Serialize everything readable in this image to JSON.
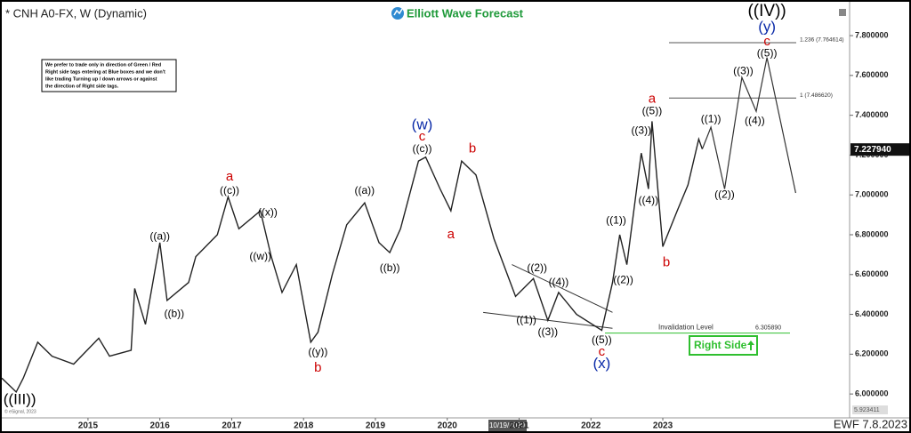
{
  "chart_data": {
    "type": "line",
    "title": "* CNH A0-FX, W (Dynamic)",
    "logo": "Elliott Wave Forecast",
    "note": [
      "We prefer to trade only in direction of Green / Red",
      "Right side tags entering at Blue boxes and we don't",
      "like trading Turning up / down arrows or against",
      "the direction of Right side tags."
    ],
    "footer": "EWF 7.8.2023",
    "source": "© eSignal, 2023",
    "cursor_label": "10/19/2020",
    "low_label": "5.923411",
    "last_price": {
      "value": 7.22794,
      "label": "7.227940"
    },
    "right_side": "Right Side",
    "xlim": [
      2013.8,
      2025.6
    ],
    "ylim": [
      5.88,
      7.97
    ],
    "xticks": [
      2015,
      2016,
      2017,
      2018,
      2019,
      2020,
      2021,
      2022,
      2023
    ],
    "yticks": [
      {
        "value": 6,
        "label": "6.000000"
      },
      {
        "value": 6.2,
        "label": "6.200000"
      },
      {
        "value": 6.4,
        "label": "6.400000"
      },
      {
        "value": 6.6,
        "label": "6.600000"
      },
      {
        "value": 6.8,
        "label": "6.800000"
      },
      {
        "value": 7,
        "label": "7.000000"
      },
      {
        "value": 7.2,
        "label": "7.200000"
      },
      {
        "value": 7.4,
        "label": "7.400000"
      },
      {
        "value": 7.6,
        "label": "7.600000"
      },
      {
        "value": 7.8,
        "label": "7.800000"
      }
    ],
    "series": [
      {
        "color": "#222222",
        "x": [
          2013.8,
          2014.0,
          2014.1,
          2014.3,
          2014.5,
          2014.8,
          2015.15,
          2015.3,
          2015.6,
          2015.65,
          2015.8,
          2016.0,
          2016.1,
          2016.4,
          2016.5,
          2016.8,
          2016.95,
          2017.1,
          2017.4,
          2017.55,
          2017.7,
          2017.9,
          2018.1,
          2018.2,
          2018.4,
          2018.6,
          2018.85,
          2019.05,
          2019.2,
          2019.35,
          2019.6,
          2019.7,
          2019.9,
          2020.05,
          2020.2,
          2020.4,
          2020.65,
          2020.95,
          2021.2,
          2021.4,
          2021.55,
          2021.8,
          2022.15,
          2022.3,
          2022.4,
          2022.5,
          2022.7,
          2022.8,
          2022.85,
          2023.0,
          2023.2,
          2023.35,
          2023.5,
          2023.55
        ],
        "values": [
          6.08,
          6.01,
          6.08,
          6.26,
          6.19,
          6.15,
          6.28,
          6.19,
          6.22,
          6.53,
          6.35,
          6.76,
          6.47,
          6.56,
          6.69,
          6.8,
          6.99,
          6.83,
          6.92,
          6.69,
          6.51,
          6.65,
          6.26,
          6.31,
          6.6,
          6.85,
          6.96,
          6.76,
          6.71,
          6.83,
          7.17,
          7.19,
          7.03,
          6.92,
          7.17,
          7.1,
          6.78,
          6.49,
          6.58,
          6.37,
          6.51,
          6.4,
          6.32,
          6.56,
          6.8,
          6.65,
          7.21,
          7.03,
          7.37,
          6.74,
          6.92,
          7.05,
          7.28,
          7.23
        ]
      },
      {
        "color": "#333333",
        "x": [
          2023.55,
          2023.67,
          2023.86,
          2024.1,
          2024.3,
          2024.45,
          2024.85
        ],
        "values": [
          7.23,
          7.34,
          7.03,
          7.59,
          7.42,
          7.69,
          7.01
        ]
      }
    ],
    "levels": [
      {
        "value": 7.764614,
        "label": "1.236 (7.764614)",
        "color": "#555555"
      },
      {
        "value": 7.48662,
        "label": "1 (7.486620)",
        "color": "#555555"
      }
    ],
    "invalidation": {
      "value": 6.30589,
      "label": "Invalidation Level",
      "value_label": "6.305890",
      "color": "#2fbf2f"
    },
    "trendlines": [
      {
        "x": [
          2020.9,
          2022.3
        ],
        "values": [
          6.65,
          6.41
        ]
      },
      {
        "x": [
          2020.5,
          2022.3
        ],
        "values": [
          6.41,
          6.33
        ]
      }
    ],
    "annotations": [
      {
        "text": "((III))",
        "x": 2014.05,
        "y": 5.97,
        "color": "#000000",
        "size": 17
      },
      {
        "text": "((a))",
        "x": 2016.0,
        "y": 6.79,
        "color": "#000000",
        "size": 12
      },
      {
        "text": "((b))",
        "x": 2016.2,
        "y": 6.4,
        "color": "#000000",
        "size": 12
      },
      {
        "text": "a",
        "x": 2016.97,
        "y": 7.09,
        "color": "#cc0000",
        "size": 15
      },
      {
        "text": "((c))",
        "x": 2016.97,
        "y": 7.02,
        "color": "#000000",
        "size": 12
      },
      {
        "text": "((x))",
        "x": 2017.5,
        "y": 6.91,
        "color": "#000000",
        "size": 12
      },
      {
        "text": "((w))",
        "x": 2017.4,
        "y": 6.69,
        "color": "#000000",
        "size": 12
      },
      {
        "text": "((y))",
        "x": 2018.2,
        "y": 6.21,
        "color": "#000000",
        "size": 12
      },
      {
        "text": "b",
        "x": 2018.2,
        "y": 6.13,
        "color": "#cc0000",
        "size": 15
      },
      {
        "text": "((a))",
        "x": 2018.85,
        "y": 7.02,
        "color": "#000000",
        "size": 12
      },
      {
        "text": "((b))",
        "x": 2019.2,
        "y": 6.63,
        "color": "#000000",
        "size": 12
      },
      {
        "text": "(w)",
        "x": 2019.65,
        "y": 7.35,
        "color": "#0a2aa8",
        "size": 17
      },
      {
        "text": "c",
        "x": 2019.65,
        "y": 7.29,
        "color": "#cc0000",
        "size": 15
      },
      {
        "text": "((c))",
        "x": 2019.65,
        "y": 7.23,
        "color": "#000000",
        "size": 12
      },
      {
        "text": "b",
        "x": 2020.35,
        "y": 7.23,
        "color": "#cc0000",
        "size": 15
      },
      {
        "text": "a",
        "x": 2020.05,
        "y": 6.8,
        "color": "#cc0000",
        "size": 15
      },
      {
        "text": "((2))",
        "x": 2021.25,
        "y": 6.63,
        "color": "#000000",
        "size": 12
      },
      {
        "text": "((4))",
        "x": 2021.55,
        "y": 6.56,
        "color": "#000000",
        "size": 12
      },
      {
        "text": "((1))",
        "x": 2021.1,
        "y": 6.37,
        "color": "#000000",
        "size": 12
      },
      {
        "text": "((3))",
        "x": 2021.4,
        "y": 6.31,
        "color": "#000000",
        "size": 12
      },
      {
        "text": "((5))",
        "x": 2022.15,
        "y": 6.27,
        "color": "#000000",
        "size": 12
      },
      {
        "text": "c",
        "x": 2022.15,
        "y": 6.21,
        "color": "#cc0000",
        "size": 15
      },
      {
        "text": "(x)",
        "x": 2022.15,
        "y": 6.15,
        "color": "#0a2aa8",
        "size": 17
      },
      {
        "text": "((1))",
        "x": 2022.35,
        "y": 6.87,
        "color": "#000000",
        "size": 12
      },
      {
        "text": "((2))",
        "x": 2022.45,
        "y": 6.57,
        "color": "#000000",
        "size": 12
      },
      {
        "text": "((3))",
        "x": 2022.7,
        "y": 7.32,
        "color": "#000000",
        "size": 12
      },
      {
        "text": "((4))",
        "x": 2022.8,
        "y": 6.97,
        "color": "#000000",
        "size": 12
      },
      {
        "text": "((5))",
        "x": 2022.85,
        "y": 7.42,
        "color": "#000000",
        "size": 12
      },
      {
        "text": "a",
        "x": 2022.85,
        "y": 7.48,
        "color": "#cc0000",
        "size": 15
      },
      {
        "text": "b",
        "x": 2023.05,
        "y": 6.66,
        "color": "#cc0000",
        "size": 15
      },
      {
        "text": "((1))",
        "x": 2023.67,
        "y": 7.38,
        "color": "#000000",
        "size": 12
      },
      {
        "text": "((2))",
        "x": 2023.86,
        "y": 7.0,
        "color": "#000000",
        "size": 12
      },
      {
        "text": "((3))",
        "x": 2024.12,
        "y": 7.62,
        "color": "#000000",
        "size": 12
      },
      {
        "text": "((4))",
        "x": 2024.28,
        "y": 7.37,
        "color": "#000000",
        "size": 12
      },
      {
        "text": "((5))",
        "x": 2024.45,
        "y": 7.71,
        "color": "#000000",
        "size": 12
      },
      {
        "text": "c",
        "x": 2024.45,
        "y": 7.77,
        "color": "#cc0000",
        "size": 15
      },
      {
        "text": "(y)",
        "x": 2024.45,
        "y": 7.84,
        "color": "#0a2aa8",
        "size": 17
      },
      {
        "text": "((IV))",
        "x": 2024.45,
        "y": 7.92,
        "color": "#000000",
        "size": 19
      }
    ]
  }
}
